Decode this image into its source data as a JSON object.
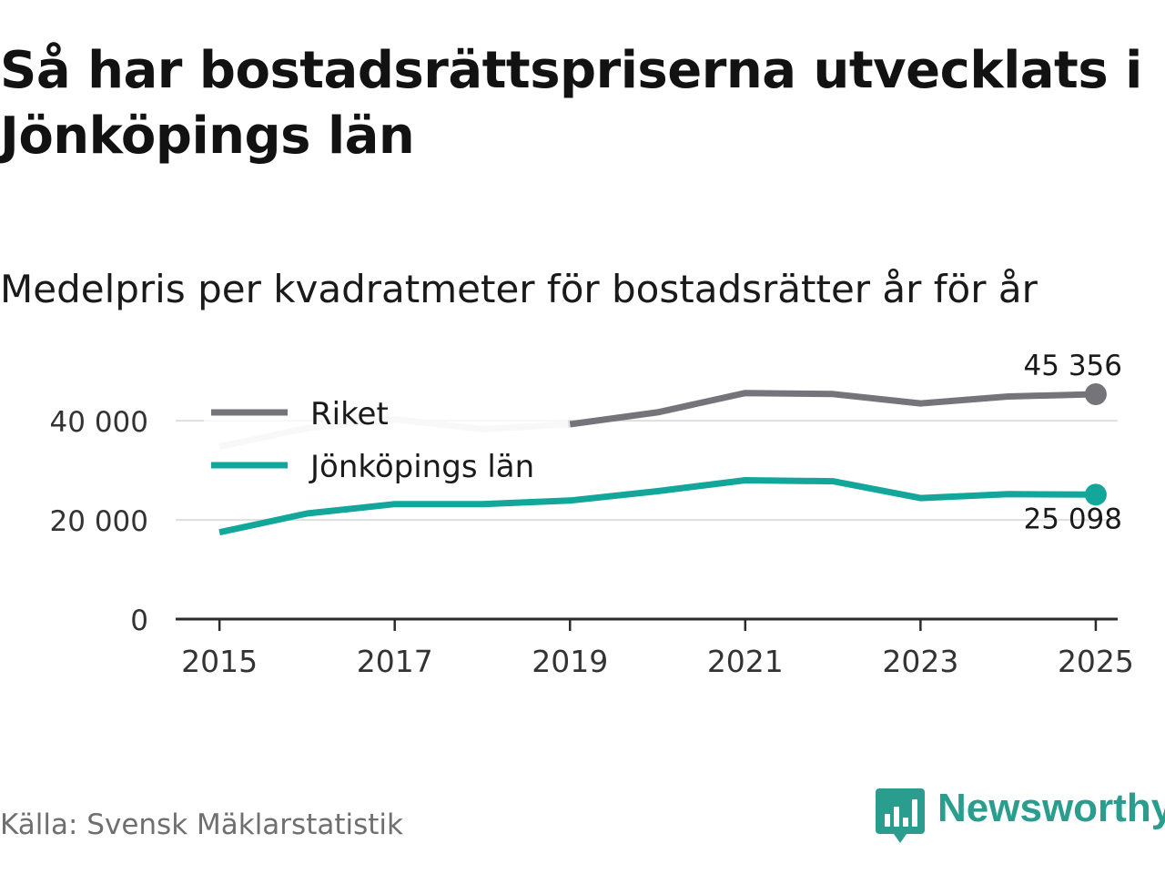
{
  "title": "Så har bostadsrättspriserna utvecklats i Jönköpings län",
  "subtitle": "Medelpris per kvadratmeter för bostadsrätter år för år",
  "source": "Källa: Svensk Mäklarstatistik",
  "brand": {
    "name": "Newsworthy",
    "logo_icon": "bar-chart-speech-bubble-icon",
    "color": "#2a9d8f"
  },
  "chart_data": {
    "type": "line",
    "title": "Medelpris per kvadratmeter för bostadsrätter år för år",
    "x": [
      2015,
      2016,
      2017,
      2018,
      2019,
      2020,
      2021,
      2022,
      2023,
      2024,
      2025
    ],
    "x_ticks": [
      2015,
      2017,
      2019,
      2021,
      2023,
      2025
    ],
    "x_tick_labels": [
      "2015",
      "2017",
      "2019",
      "2021",
      "2023",
      "2025"
    ],
    "y_ticks": [
      0,
      20000,
      40000
    ],
    "y_tick_labels": [
      "0",
      "20 000",
      "40 000"
    ],
    "ylim": [
      0,
      45356
    ],
    "xlim": [
      2014.5,
      2025.25
    ],
    "grid": true,
    "legend_position": "top-left",
    "series": [
      {
        "name": "Riket",
        "color": "#75747b",
        "faded_color": "#e3e3e3",
        "values": [
          34800,
          38500,
          40300,
          38300,
          39300,
          41700,
          45600,
          45400,
          43500,
          44900,
          45356
        ],
        "end_label": "45 356"
      },
      {
        "name": "Jönköpings län",
        "color": "#12a79a",
        "values": [
          17500,
          21300,
          23200,
          23200,
          23900,
          25800,
          28000,
          27800,
          24400,
          25200,
          25098
        ],
        "end_label": "25 098"
      }
    ]
  }
}
